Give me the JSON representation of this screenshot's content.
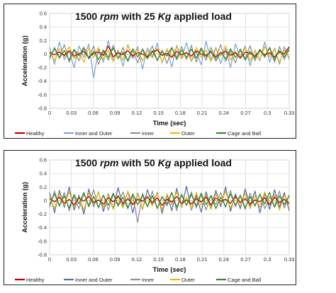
{
  "chart_data": [
    {
      "type": "line",
      "title_parts": [
        "1500 ",
        "rpm",
        " with 25 ",
        "Kg",
        " applied load"
      ],
      "xlabel_parts": [
        "Time (",
        "sec",
        ")"
      ],
      "ylabel": "Acceleration (g)",
      "xlim": [
        0,
        0.33
      ],
      "ylim": [
        -0.8,
        0.6
      ],
      "x_ticks": [
        "0",
        "0.03",
        "0.06",
        "0.09",
        "0.12",
        "0.15",
        "0.18",
        "0.21",
        "0.24",
        "0.27",
        "0.3",
        "0.33"
      ],
      "y_ticks": [
        "0.6",
        "0.4",
        "0.2",
        "0",
        "-0.2",
        "-0.4",
        "-0.6",
        "-0.8"
      ],
      "grid": true,
      "legend_position": "bottom",
      "series": [
        {
          "name": "Healthy",
          "color": "#c00000",
          "amplitude": 0.06,
          "values": [
            0.02,
            -0.01,
            0.03,
            -0.02,
            0.05,
            -0.03,
            0.0,
            0.04,
            -0.05,
            0.01,
            0.03,
            -0.02,
            0.12,
            -0.04,
            0.02,
            -0.01,
            0.05,
            -0.03,
            0.02,
            0.0,
            -0.04,
            0.03,
            0.06,
            -0.02,
            0.01,
            -0.05,
            0.04,
            -0.01,
            0.02,
            -0.03,
            0.05,
            0.0,
            -0.02,
            0.03,
            -0.04,
            0.01,
            0.04,
            -0.02,
            0.02,
            -0.06,
            0.03,
            0.01,
            -0.03,
            0.05,
            -0.01,
            0.02,
            -0.04,
            0.03,
            0.0,
            0.11
          ]
        },
        {
          "name": "Inner and Outer",
          "color": "#7fa7d6",
          "amplitude": 0.18,
          "values": [
            0.1,
            -0.15,
            0.18,
            -0.08,
            0.05,
            -0.2,
            0.12,
            -0.05,
            0.15,
            -0.35,
            0.08,
            -0.12,
            0.2,
            -0.1,
            0.06,
            -0.18,
            0.14,
            -0.07,
            0.11,
            -0.22,
            0.09,
            -0.04,
            0.16,
            -0.13,
            0.07,
            -0.19,
            0.13,
            -0.06,
            0.17,
            -0.11,
            0.04,
            -0.16,
            0.19,
            -0.09,
            0.1,
            -0.14,
            0.08,
            -0.2,
            0.15,
            -0.05,
            0.12,
            -0.17,
            0.06,
            -0.1,
            0.18,
            -0.12,
            0.09,
            -0.15,
            0.11,
            -0.08
          ]
        },
        {
          "name": "Inner",
          "color": "#909090",
          "amplitude": 0.14,
          "values": [
            -0.08,
            0.1,
            -0.05,
            0.14,
            -0.12,
            0.06,
            -0.1,
            0.09,
            -0.06,
            0.12,
            -0.15,
            0.04,
            -0.09,
            0.13,
            -0.07,
            0.1,
            -0.11,
            0.05,
            -0.13,
            0.08,
            -0.04,
            0.12,
            -0.1,
            0.06,
            -0.14,
            0.09,
            -0.05,
            0.11,
            -0.08,
            0.13,
            -0.12,
            0.07,
            -0.09,
            0.1,
            -0.06,
            0.14,
            -0.11,
            0.05,
            -0.13,
            0.08,
            -0.07,
            0.12,
            -0.1,
            0.06,
            -0.05,
            0.09,
            -0.12,
            0.11,
            -0.08,
            0.1
          ]
        },
        {
          "name": "Outer",
          "color": "#f4b400",
          "amplitude": 0.12,
          "values": [
            0.05,
            -0.1,
            0.08,
            -0.04,
            0.11,
            -0.07,
            0.03,
            -0.12,
            0.09,
            -0.05,
            0.1,
            -0.08,
            0.06,
            -0.11,
            0.04,
            -0.09,
            0.12,
            -0.03,
            0.07,
            -0.1,
            0.05,
            -0.06,
            0.09,
            -0.12,
            0.08,
            -0.04,
            0.11,
            -0.07,
            0.03,
            -0.1,
            0.1,
            -0.05,
            0.06,
            -0.11,
            0.08,
            -0.03,
            0.12,
            -0.09,
            0.04,
            -0.06,
            0.09,
            -0.1,
            0.05,
            -0.08,
            0.11,
            -0.04,
            0.07,
            -0.12,
            0.06,
            -0.05
          ]
        },
        {
          "name": "Cage and Ball",
          "color": "#2e8b2e",
          "amplitude": 0.1,
          "values": [
            -0.04,
            0.08,
            -0.06,
            0.05,
            -0.09,
            0.07,
            -0.03,
            0.1,
            -0.07,
            0.04,
            -0.08,
            0.06,
            -0.05,
            0.09,
            -0.06,
            0.03,
            -0.1,
            0.08,
            -0.04,
            0.06,
            -0.07,
            0.05,
            -0.09,
            0.04,
            -0.03,
            0.1,
            -0.08,
            0.06,
            -0.05,
            0.07,
            -0.06,
            0.09,
            -0.04,
            0.05,
            -0.1,
            0.03,
            -0.07,
            0.08,
            -0.05,
            0.06,
            -0.09,
            0.04,
            -0.06,
            0.07,
            -0.03,
            0.1,
            -0.08,
            0.05,
            -0.04,
            0.06
          ]
        }
      ]
    },
    {
      "type": "line",
      "title_parts": [
        "1500 ",
        "rpm",
        " with 50 ",
        "Kg",
        " applied load"
      ],
      "xlabel_parts": [
        "Time (",
        "sec",
        ")"
      ],
      "ylabel": "Acceleration (g)",
      "xlim": [
        0,
        0.33
      ],
      "ylim": [
        -0.8,
        0.6
      ],
      "x_ticks": [
        "0",
        "0.03",
        "0.06",
        "0.09",
        "0.12",
        "0.15",
        "0.18",
        "0.21",
        "0.24",
        "0.27",
        "0.3",
        "0.33"
      ],
      "y_ticks": [
        "0.6",
        "0.4",
        "0.2",
        "0",
        "-0.2",
        "-0.4",
        "-0.6",
        "-0.8"
      ],
      "grid": true,
      "legend_position": "bottom",
      "series": [
        {
          "name": "Healthy",
          "color": "#c00000",
          "amplitude": 0.08,
          "values": [
            0.03,
            -0.02,
            0.05,
            -0.04,
            0.02,
            -0.06,
            0.04,
            -0.01,
            0.06,
            -0.03,
            0.01,
            -0.05,
            0.04,
            -0.02,
            0.07,
            -0.04,
            0.03,
            -0.06,
            0.02,
            -0.01,
            0.05,
            -0.03,
            0.04,
            -0.07,
            0.02,
            -0.02,
            0.06,
            -0.04,
            0.01,
            -0.05,
            0.03,
            -0.02,
            0.05,
            -0.06,
            0.04,
            -0.01,
            0.02,
            -0.04,
            0.06,
            -0.03,
            0.03,
            -0.05,
            0.01,
            -0.02,
            0.04,
            -0.06,
            0.05,
            -0.03,
            0.02,
            -0.04
          ]
        },
        {
          "name": "Inner and Outer",
          "color": "#4f6fb0",
          "amplitude": 0.2,
          "values": [
            0.12,
            -0.18,
            0.15,
            -0.1,
            0.2,
            -0.14,
            0.08,
            -0.2,
            0.17,
            -0.09,
            0.13,
            -0.16,
            0.1,
            -0.12,
            0.19,
            -0.08,
            0.14,
            -0.18,
            0.11,
            -0.13,
            0.16,
            -0.07,
            0.12,
            -0.19,
            0.09,
            -0.15,
            0.18,
            -0.1,
            0.21,
            -0.14,
            0.08,
            -0.17,
            0.13,
            -0.11,
            0.15,
            -0.09,
            0.2,
            -0.16,
            0.1,
            -0.12,
            0.17,
            -0.08,
            0.14,
            -0.18,
            0.11,
            -0.13,
            0.16,
            -0.1,
            0.12,
            -0.15
          ]
        },
        {
          "name": "Inner",
          "color": "#909090",
          "amplitude": 0.16,
          "values": [
            -0.1,
            0.14,
            -0.08,
            0.12,
            -0.15,
            0.06,
            -0.12,
            0.1,
            -0.07,
            0.16,
            -0.11,
            0.08,
            -0.14,
            0.09,
            -0.06,
            0.13,
            -0.1,
            0.07,
            -0.32,
            0.11,
            -0.09,
            0.14,
            -0.12,
            0.06,
            -0.08,
            0.12,
            -0.15,
            0.1,
            -0.07,
            0.13,
            -0.11,
            0.09,
            -0.14,
            0.08,
            -0.06,
            0.12,
            -0.1,
            0.15,
            -0.09,
            0.07,
            -0.13,
            0.11,
            -0.08,
            0.1,
            -0.12,
            0.06,
            -0.09,
            0.14,
            -0.11,
            0.08
          ]
        },
        {
          "name": "Outer",
          "color": "#f4b400",
          "amplitude": 0.14,
          "values": [
            0.06,
            -0.12,
            0.1,
            -0.07,
            0.13,
            -0.09,
            0.05,
            -0.14,
            0.11,
            -0.06,
            0.12,
            -0.1,
            0.08,
            -0.13,
            0.06,
            -0.11,
            0.14,
            -0.05,
            0.09,
            -0.12,
            0.07,
            -0.08,
            0.11,
            -0.14,
            0.1,
            -0.06,
            0.13,
            -0.09,
            0.05,
            -0.12,
            0.12,
            -0.07,
            0.08,
            -0.13,
            0.1,
            -0.05,
            0.14,
            -0.11,
            0.06,
            -0.08,
            0.11,
            -0.12,
            0.07,
            -0.1,
            0.13,
            -0.06,
            0.09,
            -0.14,
            0.08,
            -0.07
          ]
        },
        {
          "name": "Cage and Ball",
          "color": "#2e8b2e",
          "amplitude": 0.13,
          "values": [
            -0.06,
            0.1,
            -0.08,
            0.07,
            -0.11,
            0.09,
            -0.05,
            0.12,
            -0.09,
            0.06,
            -0.1,
            0.08,
            -0.07,
            0.11,
            -0.08,
            0.05,
            -0.12,
            0.1,
            -0.06,
            0.08,
            -0.09,
            0.07,
            -0.11,
            0.06,
            -0.05,
            0.12,
            -0.1,
            0.08,
            -0.07,
            0.09,
            -0.08,
            0.11,
            -0.06,
            0.07,
            -0.12,
            0.05,
            -0.09,
            0.1,
            -0.07,
            0.08,
            -0.11,
            0.06,
            -0.08,
            0.09,
            -0.05,
            0.12,
            -0.1,
            0.07,
            -0.06,
            0.08
          ]
        }
      ]
    }
  ]
}
